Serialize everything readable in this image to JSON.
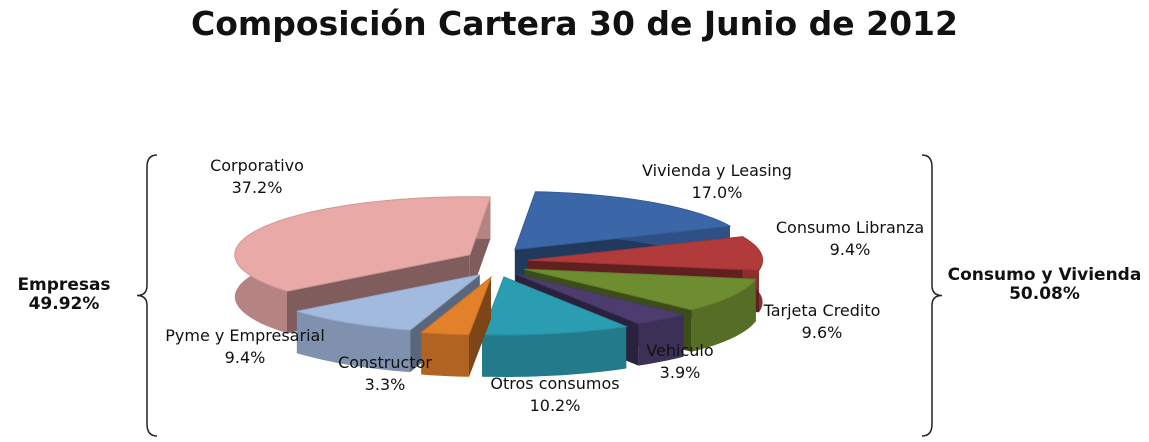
{
  "chart_data": {
    "type": "pie",
    "title": "Composición Cartera 30 de Junio de 2012",
    "categories": [
      "Vivienda y Leasing",
      "Consumo Libranza",
      "Tarjeta Credito",
      "Vehiculo",
      "Otros consumos",
      "Constructor",
      "Pyme y Empresarial",
      "Corporativo"
    ],
    "values": [
      17.0,
      9.4,
      9.6,
      3.9,
      10.2,
      3.3,
      9.4,
      37.2
    ],
    "value_labels": [
      "17.0%",
      "9.4%",
      "9.6%",
      "3.9%",
      "10.2%",
      "3.3%",
      "9.4%",
      "37.2%"
    ],
    "colors": [
      "#3b67a9",
      "#b13b3b",
      "#6e8c30",
      "#4d3d6e",
      "#2b9db2",
      "#e3802a",
      "#a3badf",
      "#e8a9a7"
    ],
    "groups": [
      {
        "name": "Empresas",
        "value": 49.92,
        "label": "49.92%"
      },
      {
        "name": "Consumo y Vivienda",
        "value": 50.08,
        "label": "50.08%"
      }
    ]
  }
}
